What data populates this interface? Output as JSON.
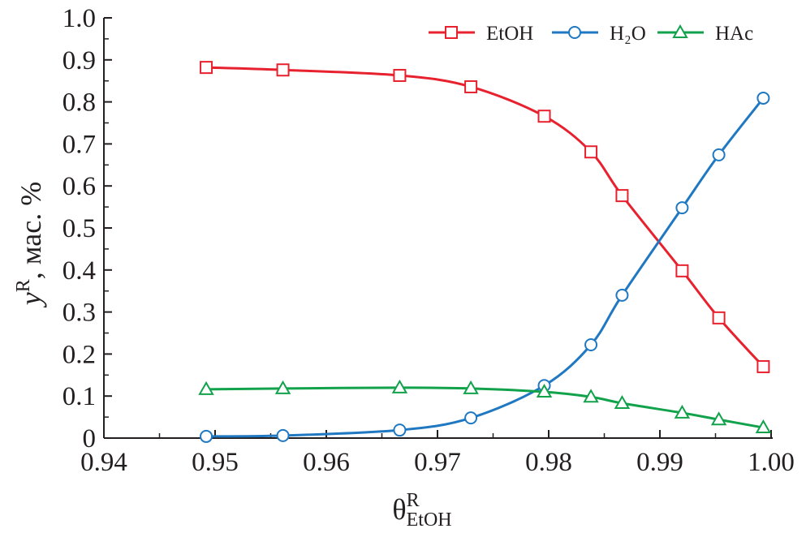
{
  "chart_data": {
    "type": "line",
    "title": "",
    "xlabel": {
      "main": "θ",
      "sup": "R",
      "sub": "EtOH"
    },
    "ylabel": {
      "main": "y",
      "sup": "R",
      "rest": ", мас. %"
    },
    "xlim": [
      0.94,
      1.0
    ],
    "ylim": [
      0,
      1.0
    ],
    "xticks": [
      "0.94",
      "0.95",
      "0.96",
      "0.97",
      "0.98",
      "0.99",
      "1.00"
    ],
    "yticks": [
      "0",
      "0.1",
      "0.2",
      "0.3",
      "0.4",
      "0.5",
      "0.6",
      "0.7",
      "0.8",
      "0.9",
      "1.0"
    ],
    "grid": false,
    "legend_position": "top-right",
    "x": [
      0.9492,
      0.9561,
      0.9666,
      0.973,
      0.9796,
      0.9838,
      0.9866,
      0.992,
      0.9953,
      0.9993
    ],
    "series": [
      {
        "name": "EtOH",
        "color": "#e8212e",
        "marker": "square",
        "values": [
          0.882,
          0.876,
          0.863,
          0.836,
          0.766,
          0.681,
          0.577,
          0.398,
          0.286,
          0.17
        ]
      },
      {
        "name": "H₂O",
        "color": "#1f78c1",
        "marker": "circle",
        "values": [
          0.004,
          0.006,
          0.019,
          0.048,
          0.125,
          0.222,
          0.34,
          0.548,
          0.674,
          0.809
        ]
      },
      {
        "name": "HAc",
        "color": "#12a24b",
        "marker": "triangle",
        "values": [
          0.116,
          0.118,
          0.12,
          0.118,
          0.11,
          0.098,
          0.083,
          0.06,
          0.044,
          0.025
        ]
      }
    ]
  }
}
